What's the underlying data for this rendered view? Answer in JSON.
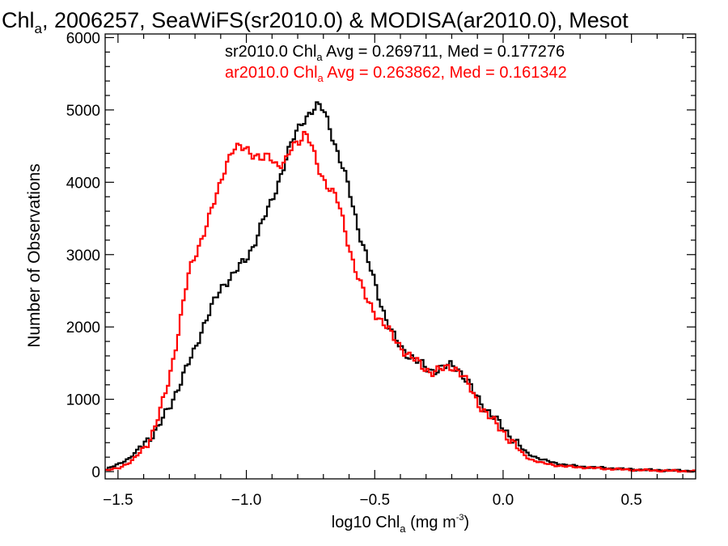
{
  "chart_data": {
    "type": "line",
    "title": {
      "prefix": "Chl",
      "sub": "a",
      "rest": ", 2006257, SeaWiFS(sr2010.0) & MODISA(ar2010.0), Mesot"
    },
    "xlabel": {
      "prefix": "log10 Chl",
      "sub": "a",
      "mid": " (mg m",
      "sup": "-3",
      "suffix": ")"
    },
    "ylabel": "Number of Observations",
    "xlim": [
      -1.55,
      0.75
    ],
    "ylim": [
      -100,
      6050
    ],
    "x_ticks": [
      {
        "value": -1.5,
        "label": "−1.5"
      },
      {
        "value": -1.0,
        "label": "−1.0"
      },
      {
        "value": -0.5,
        "label": "−0.5"
      },
      {
        "value": 0.0,
        "label": "0.0"
      },
      {
        "value": 0.5,
        "label": "0.5"
      }
    ],
    "y_ticks": [
      {
        "value": 0,
        "label": "0"
      },
      {
        "value": 1000,
        "label": "1000"
      },
      {
        "value": 2000,
        "label": "2000"
      },
      {
        "value": 3000,
        "label": "3000"
      },
      {
        "value": 4000,
        "label": "4000"
      },
      {
        "value": 5000,
        "label": "5000"
      },
      {
        "value": 6000,
        "label": "6000"
      }
    ],
    "bin_width": 0.01,
    "grid": false,
    "legend": [
      {
        "prefix": "sr2010.0 Chl",
        "sub": "a",
        "rest": " Avg = 0.269711, Med = 0.177276",
        "color": "#000000"
      },
      {
        "prefix": "ar2010.0 Chl",
        "sub": "a",
        "rest": " Avg = 0.263862, Med = 0.161342",
        "color": "#ff0000"
      }
    ],
    "series": [
      {
        "name": "sr2010.0",
        "color": "#000000",
        "points": [
          [
            -1.55,
            20
          ],
          [
            -1.5,
            100
          ],
          [
            -1.45,
            200
          ],
          [
            -1.4,
            380
          ],
          [
            -1.35,
            580
          ],
          [
            -1.3,
            880
          ],
          [
            -1.27,
            1130
          ],
          [
            -1.24,
            1380
          ],
          [
            -1.2,
            1680
          ],
          [
            -1.17,
            2000
          ],
          [
            -1.14,
            2240
          ],
          [
            -1.1,
            2520
          ],
          [
            -1.07,
            2660
          ],
          [
            -1.04,
            2780
          ],
          [
            -1.0,
            2930
          ],
          [
            -0.97,
            3150
          ],
          [
            -0.94,
            3430
          ],
          [
            -0.9,
            3740
          ],
          [
            -0.87,
            4060
          ],
          [
            -0.84,
            4380
          ],
          [
            -0.81,
            4660
          ],
          [
            -0.78,
            4860
          ],
          [
            -0.75,
            4960
          ],
          [
            -0.72,
            5050
          ],
          [
            -0.7,
            5020
          ],
          [
            -0.68,
            4840
          ],
          [
            -0.66,
            4580
          ],
          [
            -0.64,
            4330
          ],
          [
            -0.62,
            4150
          ],
          [
            -0.6,
            3920
          ],
          [
            -0.58,
            3620
          ],
          [
            -0.56,
            3300
          ],
          [
            -0.54,
            3050
          ],
          [
            -0.52,
            2840
          ],
          [
            -0.5,
            2620
          ],
          [
            -0.48,
            2380
          ],
          [
            -0.46,
            2150
          ],
          [
            -0.44,
            1970
          ],
          [
            -0.42,
            1830
          ],
          [
            -0.4,
            1730
          ],
          [
            -0.37,
            1620
          ],
          [
            -0.34,
            1540
          ],
          [
            -0.31,
            1460
          ],
          [
            -0.28,
            1400
          ],
          [
            -0.25,
            1410
          ],
          [
            -0.22,
            1450
          ],
          [
            -0.2,
            1480
          ],
          [
            -0.18,
            1450
          ],
          [
            -0.16,
            1350
          ],
          [
            -0.14,
            1240
          ],
          [
            -0.12,
            1130
          ],
          [
            -0.1,
            1030
          ],
          [
            -0.08,
            930
          ],
          [
            -0.06,
            840
          ],
          [
            -0.04,
            760
          ],
          [
            -0.02,
            680
          ],
          [
            0.0,
            610
          ],
          [
            0.02,
            530
          ],
          [
            0.04,
            450
          ],
          [
            0.06,
            370
          ],
          [
            0.08,
            300
          ],
          [
            0.1,
            240
          ],
          [
            0.15,
            170
          ],
          [
            0.2,
            120
          ],
          [
            0.25,
            90
          ],
          [
            0.3,
            70
          ],
          [
            0.4,
            50
          ],
          [
            0.5,
            30
          ],
          [
            0.6,
            20
          ],
          [
            0.75,
            10
          ]
        ]
      },
      {
        "name": "ar2010.0",
        "color": "#ff0000",
        "points": [
          [
            -1.55,
            10
          ],
          [
            -1.5,
            50
          ],
          [
            -1.45,
            130
          ],
          [
            -1.4,
            320
          ],
          [
            -1.36,
            560
          ],
          [
            -1.33,
            900
          ],
          [
            -1.3,
            1300
          ],
          [
            -1.28,
            1650
          ],
          [
            -1.26,
            2000
          ],
          [
            -1.24,
            2450
          ],
          [
            -1.22,
            2800
          ],
          [
            -1.2,
            3000
          ],
          [
            -1.17,
            3250
          ],
          [
            -1.14,
            3550
          ],
          [
            -1.11,
            3900
          ],
          [
            -1.08,
            4250
          ],
          [
            -1.05,
            4450
          ],
          [
            -1.02,
            4480
          ],
          [
            -1.0,
            4490
          ],
          [
            -0.97,
            4370
          ],
          [
            -0.94,
            4300
          ],
          [
            -0.91,
            4380
          ],
          [
            -0.88,
            4240
          ],
          [
            -0.85,
            4250
          ],
          [
            -0.82,
            4500
          ],
          [
            -0.79,
            4600
          ],
          [
            -0.77,
            4700
          ],
          [
            -0.75,
            4540
          ],
          [
            -0.73,
            4300
          ],
          [
            -0.71,
            4100
          ],
          [
            -0.69,
            4000
          ],
          [
            -0.67,
            3900
          ],
          [
            -0.65,
            3800
          ],
          [
            -0.63,
            3550
          ],
          [
            -0.61,
            3250
          ],
          [
            -0.59,
            2980
          ],
          [
            -0.57,
            2750
          ],
          [
            -0.55,
            2540
          ],
          [
            -0.53,
            2360
          ],
          [
            -0.5,
            2200
          ],
          [
            -0.47,
            2070
          ],
          [
            -0.45,
            1980
          ],
          [
            -0.43,
            1860
          ],
          [
            -0.4,
            1730
          ],
          [
            -0.37,
            1620
          ],
          [
            -0.34,
            1530
          ],
          [
            -0.31,
            1440
          ],
          [
            -0.28,
            1380
          ],
          [
            -0.25,
            1400
          ],
          [
            -0.22,
            1430
          ],
          [
            -0.2,
            1460
          ],
          [
            -0.18,
            1420
          ],
          [
            -0.16,
            1340
          ],
          [
            -0.14,
            1220
          ],
          [
            -0.12,
            1100
          ],
          [
            -0.1,
            970
          ],
          [
            -0.08,
            870
          ],
          [
            -0.06,
            780
          ],
          [
            -0.04,
            700
          ],
          [
            -0.02,
            630
          ],
          [
            0.0,
            560
          ],
          [
            0.02,
            470
          ],
          [
            0.04,
            390
          ],
          [
            0.06,
            310
          ],
          [
            0.08,
            240
          ],
          [
            0.1,
            180
          ],
          [
            0.15,
            120
          ],
          [
            0.2,
            90
          ],
          [
            0.25,
            70
          ],
          [
            0.3,
            60
          ],
          [
            0.4,
            40
          ],
          [
            0.5,
            25
          ],
          [
            0.6,
            15
          ],
          [
            0.75,
            5
          ]
        ]
      }
    ]
  }
}
